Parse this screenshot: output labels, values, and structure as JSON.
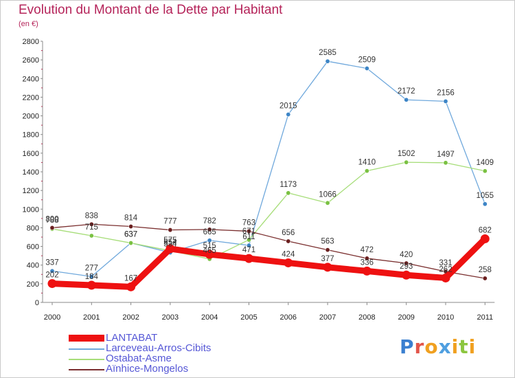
{
  "title": "Evolution du Montant de la Dette par Habitant",
  "subtitle": "(en €)",
  "logo": {
    "text": "Proxiti",
    "letters": [
      {
        "ch": "P",
        "color": "#3a7fd0"
      },
      {
        "ch": "r",
        "color": "#e2554a"
      },
      {
        "ch": "o",
        "color": "#f0a020"
      },
      {
        "ch": "x",
        "color": "#4f9fe0"
      },
      {
        "ch": "i",
        "color": "#f0a020"
      },
      {
        "ch": "t",
        "color": "#8cc63f"
      },
      {
        "ch": "i",
        "color": "#f0a020"
      }
    ]
  },
  "chart_data": {
    "type": "line",
    "title": "Evolution du Montant de la Dette par Habitant",
    "subtitle": "(en €)",
    "xlabel": "",
    "ylabel": "",
    "ylim": [
      0,
      2800
    ],
    "yticks": [
      0,
      200,
      400,
      600,
      800,
      1000,
      1200,
      1400,
      1600,
      1800,
      2000,
      2200,
      2400,
      2600,
      2800
    ],
    "grid": false,
    "legend": "bottom-left",
    "categories": [
      "2000",
      "2001",
      "2002",
      "2003",
      "2004",
      "2005",
      "2006",
      "2007",
      "2008",
      "2009",
      "2010",
      "2011"
    ],
    "series": [
      {
        "name": "Larceveau-Arros-Cibits",
        "color": "#6fa8dc",
        "marker": "#3d85c6",
        "values": [
          337,
          277,
          637,
          534,
          665,
          611,
          2015,
          2585,
          2509,
          2172,
          2156,
          1055
        ]
      },
      {
        "name": "Ostabat-Asme",
        "color": "#a6dd78",
        "marker": "#7ac142",
        "values": [
          788,
          715,
          637,
          554,
          465,
          671,
          1173,
          1066,
          1410,
          1502,
          1497,
          1409
        ]
      },
      {
        "name": "Aïnhice-Mongelos",
        "color": "#7a2e2e",
        "marker": "#6b1f1f",
        "values": [
          800,
          838,
          814,
          777,
          782,
          763,
          656,
          563,
          472,
          420,
          331,
          258
        ]
      },
      {
        "name": "LANTABAT",
        "color": "#ee1111",
        "marker": "#ee1111",
        "values": [
          202,
          184,
          167,
          575,
          515,
          471,
          424,
          377,
          336,
          293,
          262,
          682
        ]
      }
    ],
    "legend_order": [
      "LANTABAT",
      "Larceveau-Arros-Cibits",
      "Ostabat-Asme",
      "Aïnhice-Mongelos"
    ]
  }
}
